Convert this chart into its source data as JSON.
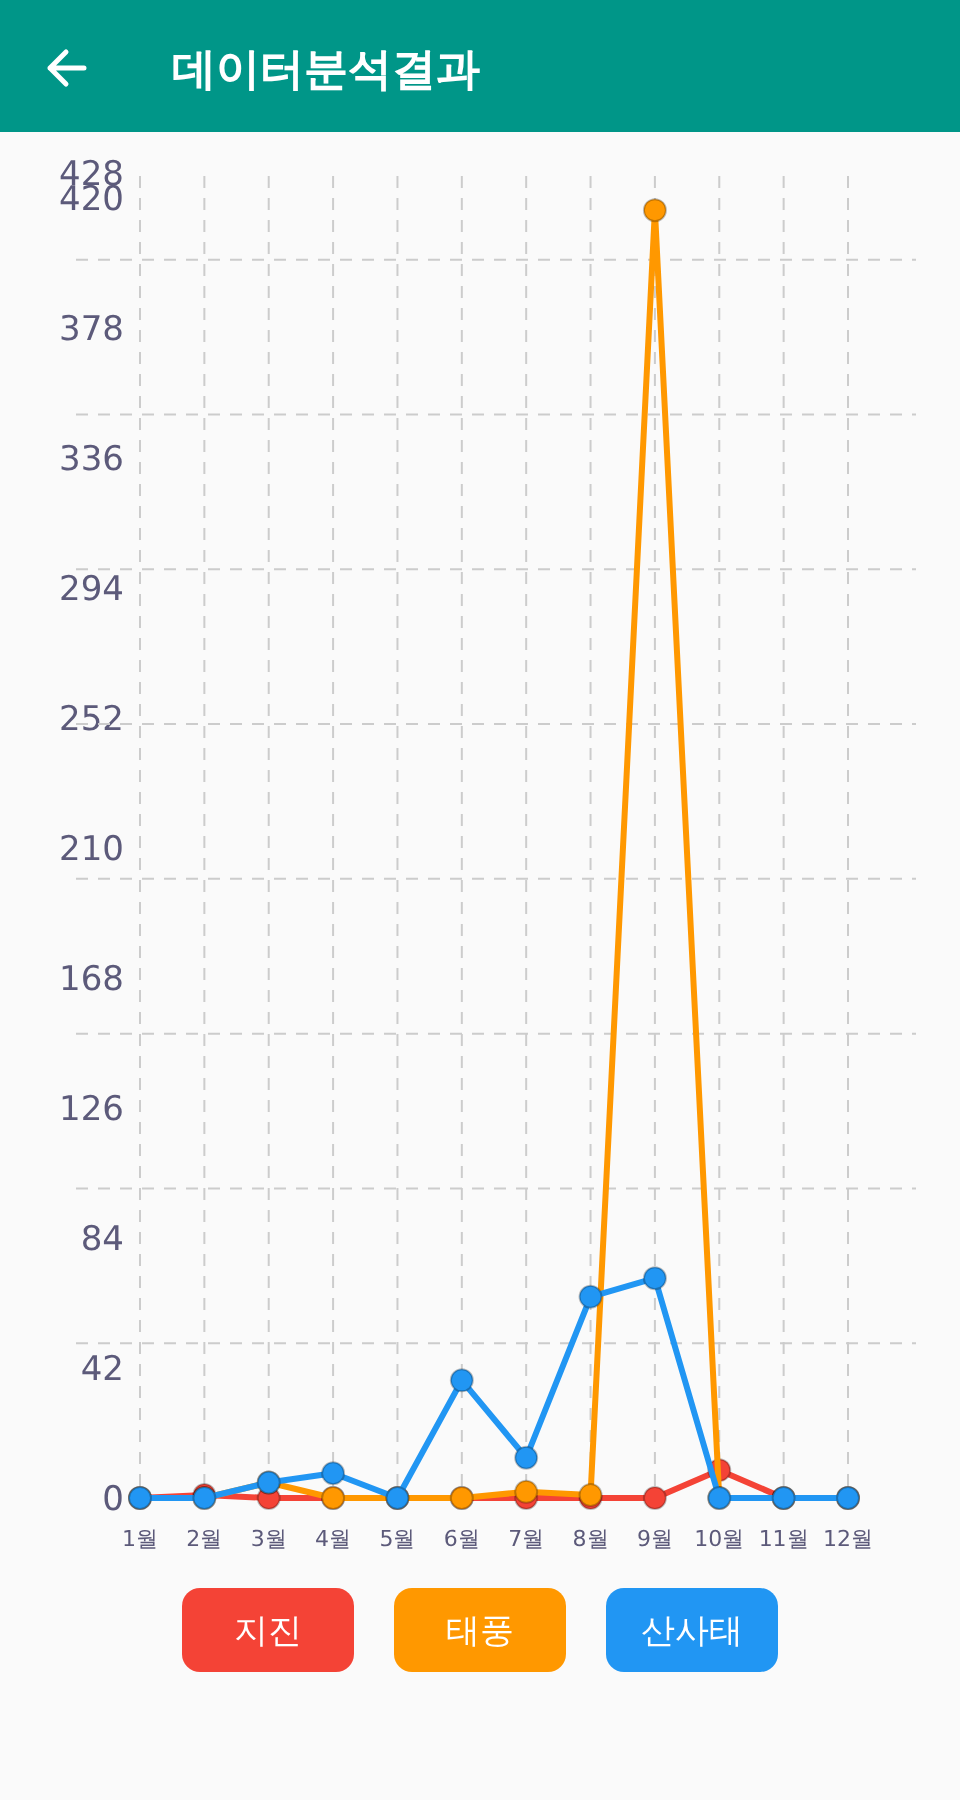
{
  "chart_data": {
    "type": "line",
    "title": "데이터분석결과",
    "categories": [
      "1월",
      "2월",
      "3월",
      "4월",
      "5월",
      "6월",
      "7월",
      "8월",
      "9월",
      "10월",
      "11월",
      "12월"
    ],
    "series": [
      {
        "name": "지진",
        "color": "#f44336",
        "values": [
          0,
          1,
          0,
          0,
          0,
          0,
          0,
          0,
          0,
          9,
          0,
          0
        ]
      },
      {
        "name": "태풍",
        "color": "#ff9800",
        "values": [
          0,
          0,
          5,
          0,
          0,
          0,
          2,
          1,
          416,
          0,
          0,
          0
        ]
      },
      {
        "name": "산사태",
        "color": "#2196f3",
        "values": [
          0,
          0,
          5,
          8,
          0,
          38,
          13,
          65,
          71,
          0,
          0,
          0
        ]
      }
    ],
    "ylim": [
      0,
      428
    ],
    "yticks": [
      0,
      {
        "value": 50,
        "label": null
      },
      42,
      84,
      {
        "value": 100,
        "label": null
      },
      126,
      {
        "value": 150,
        "label": null
      },
      168,
      {
        "value": 200,
        "label": null
      },
      210,
      252,
      {
        "value": 250,
        "label": null
      },
      294,
      {
        "value": 300,
        "label": null
      },
      336,
      {
        "value": 350,
        "label": null
      },
      378,
      {
        "value": 400,
        "label": null
      },
      420,
      428
    ],
    "grid": true,
    "legend": "bottom",
    "marker": "circle",
    "line_style": "solid"
  }
}
